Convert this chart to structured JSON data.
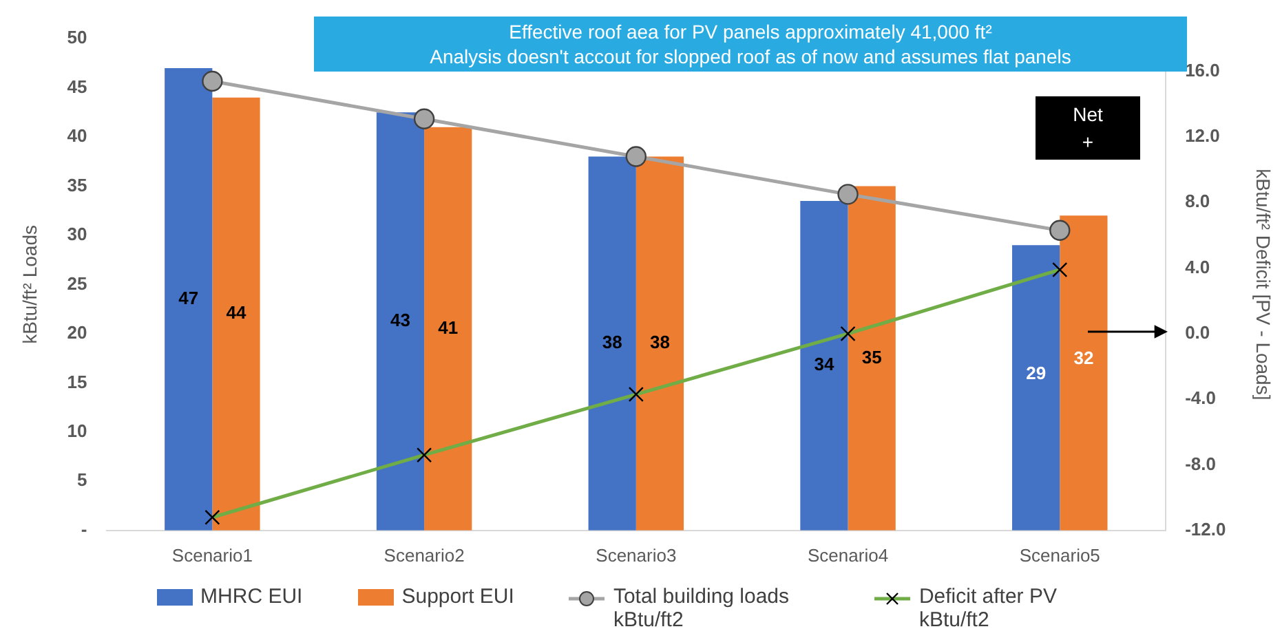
{
  "chart_data": {
    "type": "bar",
    "categories": [
      "Scenario1",
      "Scenario2",
      "Scenario3",
      "Scenario4",
      "Scenario5"
    ],
    "ylabel": "kBtu/ft² Loads",
    "y2label": "kBtu/ft² Deficit [PV - Loads]",
    "ylim": [
      0,
      50
    ],
    "yticks": [
      {
        "value": 0,
        "label": "-"
      },
      5,
      10,
      15,
      20,
      25,
      30,
      35,
      40,
      45,
      50
    ],
    "y2lim": [
      -12,
      18
    ],
    "y2ticks": [
      {
        "value": -12,
        "label": "-12.0"
      },
      {
        "value": -8,
        "label": "-8.0"
      },
      {
        "value": -4,
        "label": "-4.0"
      },
      {
        "value": 0,
        "label": "0.0"
      },
      {
        "value": 4,
        "label": "4.0"
      },
      {
        "value": 8,
        "label": "8.0"
      },
      {
        "value": 12,
        "label": "12.0"
      },
      {
        "value": 16,
        "label": "16.0"
      }
    ],
    "series": [
      {
        "name": "MHRC EUI",
        "color": "#4472c4",
        "values": [
          47,
          42.5,
          38,
          33.5,
          29
        ],
        "value_labels": [
          "47",
          "43",
          "38",
          "34",
          "29"
        ]
      },
      {
        "name": "Support EUI",
        "color": "#ed7d31",
        "values": [
          44,
          41,
          38,
          35,
          32
        ],
        "value_labels": [
          "44",
          "41",
          "38",
          "35",
          "32"
        ]
      },
      {
        "name": "Total building loads kBtu/ft2",
        "type": "line",
        "axis": "y2",
        "color": "#a5a5a5",
        "marker": "circle",
        "values": [
          15.4,
          13.1,
          10.8,
          8.5,
          6.3
        ]
      },
      {
        "name": "Deficit after PV kBtu/ft2",
        "type": "line",
        "axis": "y2",
        "color": "#70ad47",
        "marker": "cross",
        "values": [
          -11.2,
          -7.4,
          -3.7,
          0,
          3.9
        ]
      }
    ],
    "annotations": [
      "Effective  roof aea for PV panels approximately 41,000 ft²",
      "Analysis doesn't accout for slopped roof as of now and assumes flat panels",
      "Net\n+"
    ],
    "legend": "bottom",
    "grid": false
  }
}
